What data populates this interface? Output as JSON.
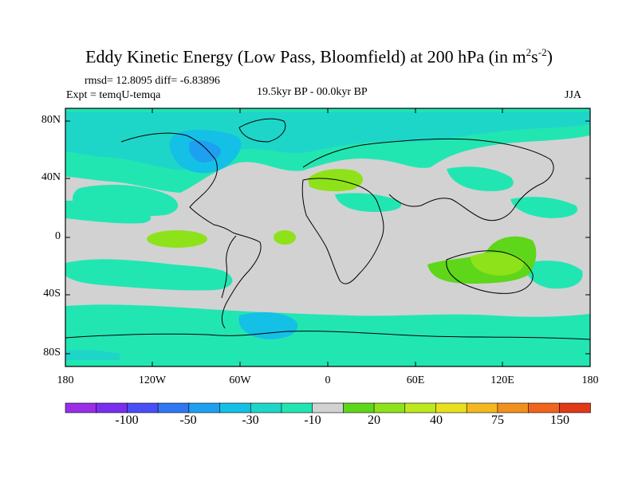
{
  "title": {
    "main": "Eddy Kinetic Energy (Low Pass, Bloomfield) at 200 hPa (in m",
    "sup1": "2",
    "mid": "s",
    "sup2": "-2",
    "end": ")"
  },
  "stats": {
    "rmsd_diff": "rmsd= 12.8095 diff= -6.83896",
    "expt": "Expt = temqU-temqa"
  },
  "subtitle": "19.5kyr BP - 00.0kyr BP",
  "season": "JJA",
  "axes": {
    "y_labels": [
      "80N",
      "40N",
      "0",
      "40S",
      "80S"
    ],
    "x_labels": [
      "180",
      "120W",
      "60W",
      "0",
      "60E",
      "120E",
      "180"
    ]
  },
  "colorbar": {
    "colors": [
      "#9a2ee8",
      "#7a2ef0",
      "#4a4ef6",
      "#2f78f2",
      "#1ea0f0",
      "#14c0e6",
      "#1ed6c8",
      "#22e6b2",
      "#d2d2d2",
      "#5ed61a",
      "#8ee21a",
      "#bce81e",
      "#e8e01e",
      "#f2b81e",
      "#f2901e",
      "#f0641e",
      "#e03a16"
    ],
    "labels": [
      "-100",
      "-50",
      "-30",
      "-10",
      "20",
      "40",
      "75",
      "150"
    ]
  },
  "legend_colors": {
    "land_outline": "#000000",
    "neutral": "#d2d2d2",
    "light_neg": "#22e6b2",
    "mid_neg": "#1ed6c8",
    "strong_neg": "#14c0e6",
    "very_strong_neg": "#1ea0f0",
    "pos_small": "#5ed61a",
    "pos_mid": "#8ee21a"
  }
}
